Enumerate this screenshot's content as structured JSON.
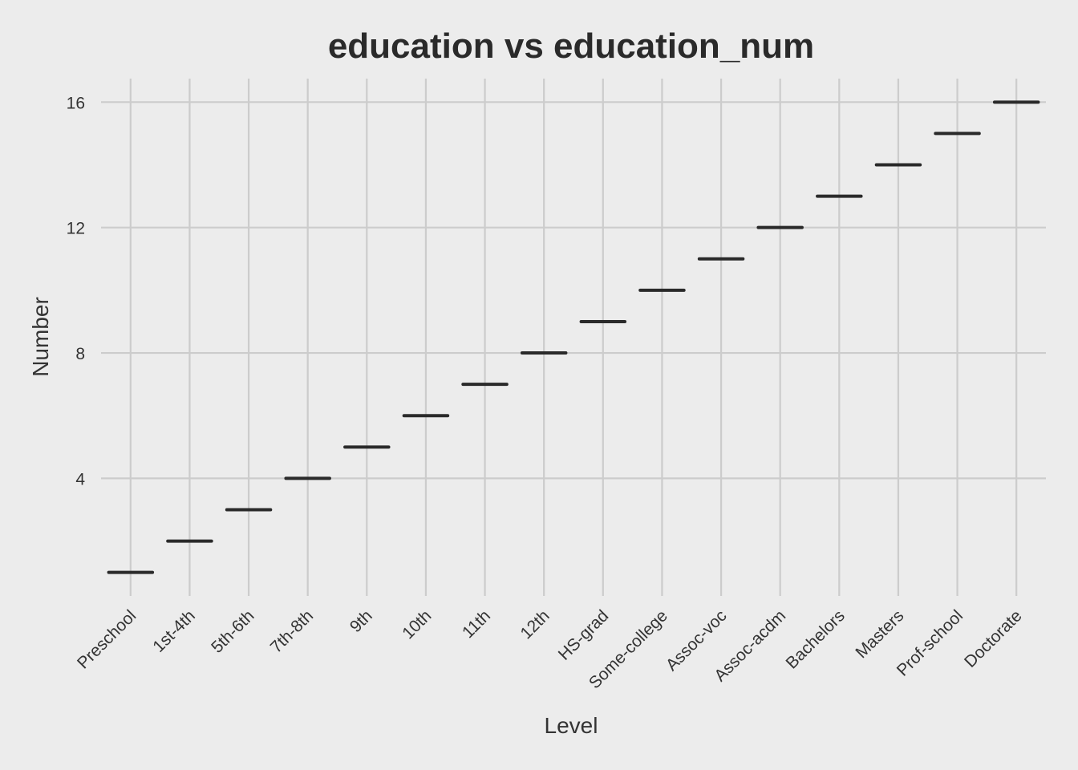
{
  "chart_data": {
    "type": "boxplot",
    "title": "education vs education_num",
    "xlabel": "Level",
    "ylabel": "Number",
    "categories": [
      "Preschool",
      "1st-4th",
      "5th-6th",
      "7th-8th",
      "9th",
      "10th",
      "11th",
      "12th",
      "HS-grad",
      "Some-college",
      "Assoc-voc",
      "Assoc-acdm",
      "Bachelors",
      "Masters",
      "Prof-school",
      "Doctorate"
    ],
    "values": [
      1,
      2,
      3,
      4,
      5,
      6,
      7,
      8,
      9,
      10,
      11,
      12,
      13,
      14,
      15,
      16
    ],
    "yticks": [
      4,
      8,
      12,
      16
    ],
    "ylim": [
      0.25,
      16.75
    ],
    "grid": true,
    "colors": {
      "background": "#ececec",
      "grid": "#cccccc",
      "mark": "#2a2a2a",
      "text": "#333333"
    }
  }
}
